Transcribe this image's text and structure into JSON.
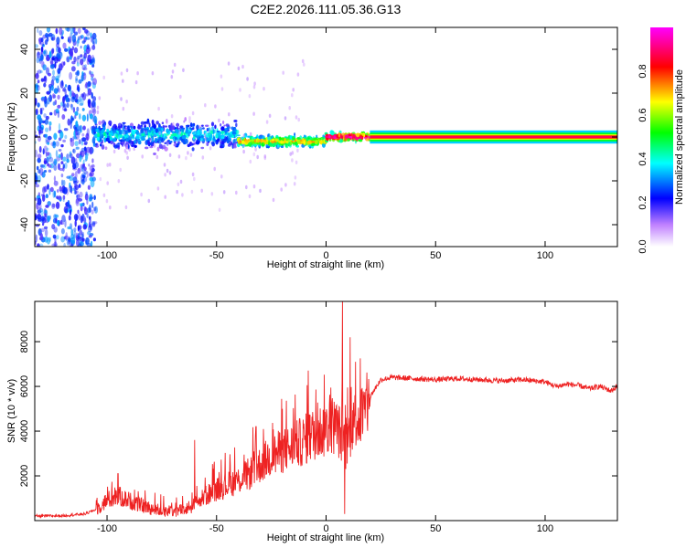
{
  "chart_data": [
    {
      "type": "heatmap",
      "title": "C2E2.2026.111.05.36.G13",
      "xlabel": "Height of straight line (km)",
      "ylabel": "Frequency (Hz)",
      "xlim": [
        -133,
        133
      ],
      "ylim": [
        -50,
        50
      ],
      "xticks": [
        -100,
        -50,
        0,
        50,
        100
      ],
      "xtick_labels": [
        "-100",
        "-50",
        "0",
        "50",
        "100"
      ],
      "yticks": [
        -40,
        -20,
        0,
        20,
        40
      ],
      "ytick_labels": [
        "-40",
        "-20",
        "0",
        "20",
        "40"
      ],
      "colorbar": {
        "label": "Normalized spectral amplitude",
        "range": [
          0,
          1
        ],
        "ticks": [
          0.0,
          0.2,
          0.4,
          0.6,
          0.8
        ],
        "tick_labels": [
          "0.0",
          "0.2",
          "0.4",
          "0.6",
          "0.8"
        ],
        "colors": [
          "#ffffff",
          "#c080ff",
          "#0000ff",
          "#00ffff",
          "#00ff00",
          "#ffff00",
          "#ff0000",
          "#ff00ff"
        ]
      },
      "regions": [
        {
          "x": [
            -133,
            -105
          ],
          "freq_center": 0,
          "freq_spread": 50,
          "amplitude": 0.15,
          "description": "broad noise"
        },
        {
          "x": [
            -105,
            -40
          ],
          "freq_center": 1,
          "freq_spread": 5,
          "amplitude": 0.3
        },
        {
          "x": [
            -40,
            0
          ],
          "freq_center": -2,
          "freq_spread": 2,
          "amplitude": 0.55
        },
        {
          "x": [
            0,
            20
          ],
          "freq_center": 0,
          "freq_spread": 1.5,
          "amplitude": 0.75
        },
        {
          "x": [
            20,
            133
          ],
          "freq_center": 0,
          "freq_spread": 1,
          "amplitude": 0.85
        }
      ],
      "grid": false
    },
    {
      "type": "line",
      "xlabel": "Height of straight line (km)",
      "ylabel": "SNR (10 * v/v)",
      "xlim": [
        -133,
        133
      ],
      "ylim": [
        0,
        9800
      ],
      "xticks": [
        -100,
        -50,
        0,
        50,
        100
      ],
      "xtick_labels": [
        "-100",
        "-50",
        "0",
        "50",
        "100"
      ],
      "yticks": [
        2000,
        4000,
        6000,
        8000
      ],
      "ytick_labels": [
        "2000",
        "4000",
        "6000",
        "8000"
      ],
      "series": [
        {
          "color": "#ee2222",
          "x": [
            -133,
            -120,
            -110,
            -105,
            -100,
            -95,
            -90,
            -85,
            -80,
            -75,
            -70,
            -65,
            -60,
            -55,
            -50,
            -45,
            -40,
            -35,
            -30,
            -25,
            -20,
            -15,
            -10,
            -5,
            0,
            3,
            6,
            9,
            12,
            15,
            18,
            21,
            25,
            30,
            40,
            50,
            60,
            70,
            80,
            90,
            100,
            105,
            110,
            115,
            120,
            125,
            130,
            133
          ],
          "y": [
            200,
            220,
            300,
            500,
            900,
            1100,
            900,
            700,
            550,
            450,
            400,
            500,
            700,
            1100,
            1400,
            1600,
            1800,
            2100,
            2500,
            2900,
            3100,
            3300,
            3600,
            3900,
            4100,
            4300,
            4000,
            3200,
            4400,
            4600,
            4900,
            5700,
            6300,
            6400,
            6350,
            6300,
            6350,
            6300,
            6250,
            6300,
            6200,
            6000,
            6100,
            6050,
            5900,
            6000,
            5800,
            6000
          ]
        }
      ],
      "spikes": [
        {
          "x": 7.5,
          "y": 9800
        },
        {
          "x": 8.5,
          "y": 300
        },
        {
          "x": 11,
          "y": 8200
        },
        {
          "x": 13.5,
          "y": 7100
        },
        {
          "x": -60,
          "y": 3600
        },
        {
          "x": -95,
          "y": 2100
        },
        {
          "x": -32,
          "y": 4200
        },
        {
          "x": -20,
          "y": 5000
        }
      ],
      "grid": false
    }
  ]
}
